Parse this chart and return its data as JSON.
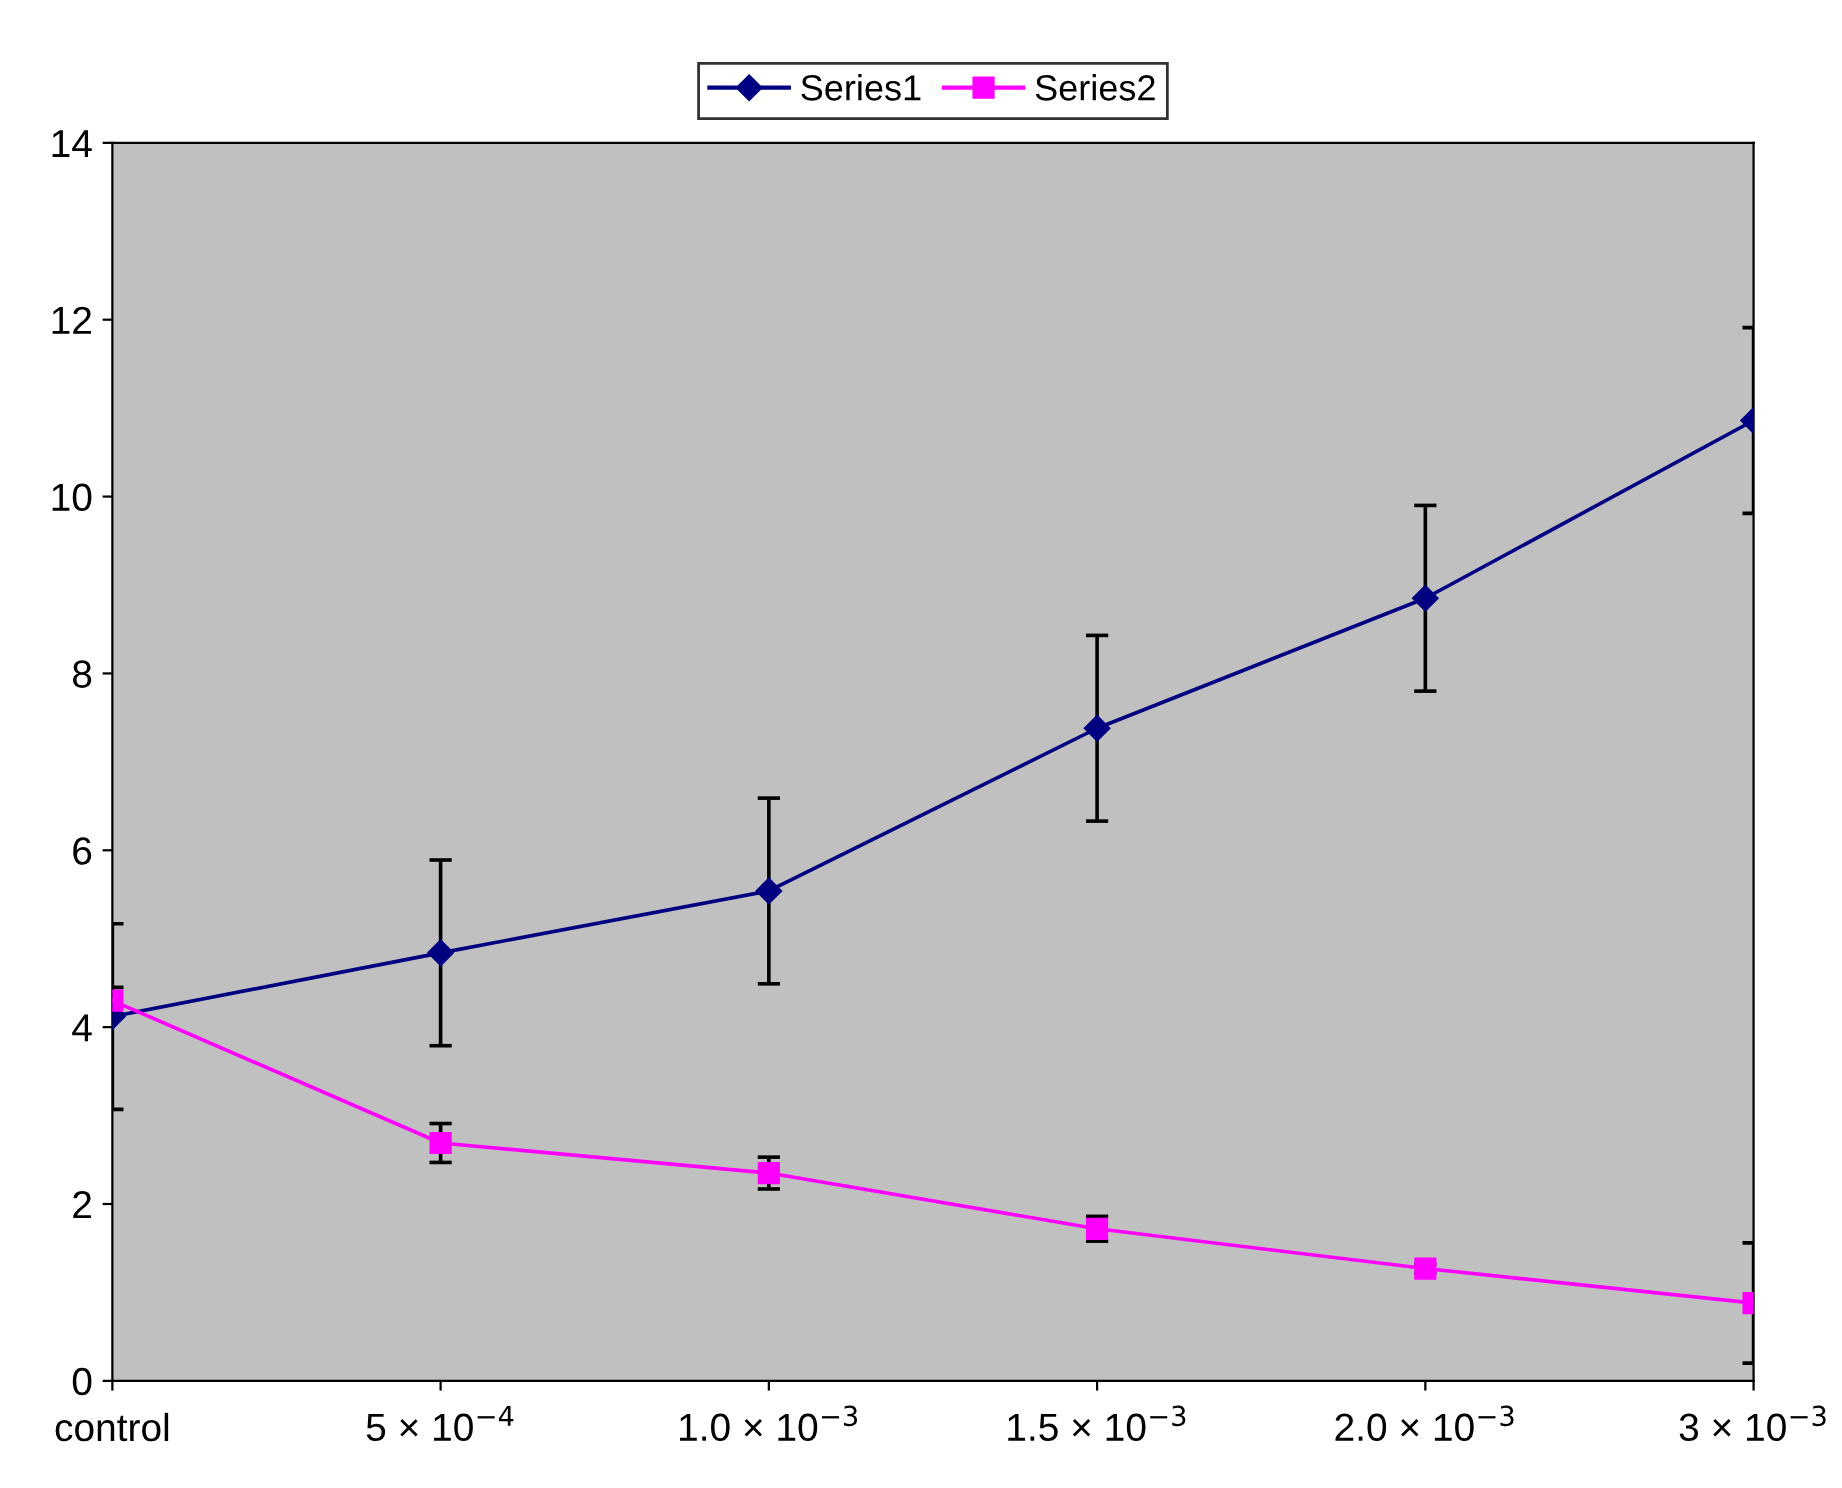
{
  "chart_data": {
    "type": "line",
    "categories": [
      "control",
      "5 × 10$^{−4}$",
      "1.0 × 10$^{−3}$",
      "1.5 × 10$^{−3}$",
      "2.0 × 10$^{−3}$",
      "3 × 10$^{−3}$"
    ],
    "series": [
      {
        "name": "Series1",
        "color": "#000080",
        "marker": "diamond",
        "values": [
          4.12,
          4.84,
          5.54,
          7.38,
          8.85,
          10.86
        ],
        "errors": [
          1.05,
          1.05,
          1.05,
          1.05,
          1.05,
          1.05
        ]
      },
      {
        "name": "Series2",
        "color": "#ff00ff",
        "marker": "square",
        "values": [
          4.3,
          2.69,
          2.35,
          1.72,
          1.27,
          0.88
        ],
        "errors": [
          0.15,
          0.22,
          0.18,
          0.14,
          0.05,
          0.68
        ]
      }
    ],
    "ylim": [
      0,
      14
    ],
    "yticks": [
      0,
      2,
      4,
      6,
      8,
      10,
      12,
      14
    ],
    "grid": false,
    "legend": "top",
    "line_style": "solid"
  }
}
